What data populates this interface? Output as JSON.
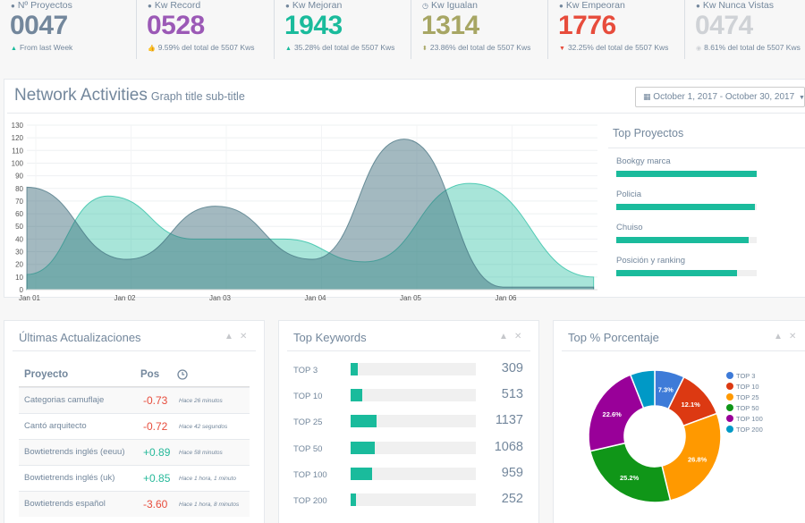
{
  "stats": [
    {
      "label": "Nº Proyectos",
      "icon": "user-icon",
      "value": "0047",
      "color": "#73879c",
      "sub_icon": "caret-up-icon",
      "sub": "From last Week",
      "sub_icon_color": "#1abb9c"
    },
    {
      "label": "Kw Record",
      "icon": "user-icon",
      "value": "0528",
      "color": "#9b59b6",
      "sub_icon": "thumbs-up-icon",
      "sub": "9.59% del total de 5507 Kws",
      "sub_icon_color": "#9b59b6"
    },
    {
      "label": "Kw Mejoran",
      "icon": "user-icon",
      "value": "1943",
      "color": "#1abb9c",
      "sub_icon": "caret-up-icon",
      "sub": "35.28% del total de 5507 Kws",
      "sub_icon_color": "#1abb9c"
    },
    {
      "label": "Kw Igualan",
      "icon": "clock-icon",
      "value": "1314",
      "color": "#a7a664",
      "sub_icon": "sort-icon",
      "sub": "23.86% del total de 5507 Kws",
      "sub_icon_color": "#a7a664"
    },
    {
      "label": "Kw Empeoran",
      "icon": "user-icon",
      "value": "1776",
      "color": "#e74c3c",
      "sub_icon": "caret-down-icon",
      "sub": "32.25% del total de 5507 Kws",
      "sub_icon_color": "#e74c3c"
    },
    {
      "label": "Kw Nunca Vistas",
      "icon": "user-icon",
      "value": "0474",
      "color": "#cfd2d6",
      "sub_icon": "eye-icon",
      "sub": "8.61% del total de 5507 Kws",
      "sub_icon_color": "#cfd2d6"
    }
  ],
  "network": {
    "title": "Network Activities",
    "subtitle": "Graph title sub-title",
    "daterange": "October 1, 2017 - October 30, 2017"
  },
  "chart_data": {
    "type": "area",
    "x": [
      "Jan 01",
      "Jan 02",
      "Jan 03",
      "Jan 04",
      "Jan 05",
      "Jan 06"
    ],
    "ylim": [
      0,
      130
    ],
    "yticks": [
      0,
      10,
      20,
      30,
      40,
      50,
      60,
      70,
      80,
      90,
      100,
      110,
      120,
      130
    ],
    "grid": true,
    "series": [
      {
        "color": "#1abb9c",
        "opacity": 0.38,
        "points": [
          [
            0,
            12
          ],
          [
            0.85,
            74
          ],
          [
            1.75,
            40
          ],
          [
            2.7,
            40
          ],
          [
            3.55,
            22
          ],
          [
            4.65,
            84
          ],
          [
            5.95,
            10
          ]
        ]
      },
      {
        "color": "#3e6d7c",
        "opacity": 0.48,
        "points": [
          [
            0,
            81
          ],
          [
            1.05,
            24
          ],
          [
            1.98,
            66
          ],
          [
            3.0,
            24
          ],
          [
            3.96,
            119
          ],
          [
            5.0,
            2
          ],
          [
            5.95,
            2
          ]
        ]
      }
    ]
  },
  "top_proyectos": {
    "title": "Top Proyectos",
    "items": [
      {
        "name": "Bookgy marca",
        "pct": 100
      },
      {
        "name": "Policia",
        "pct": 99
      },
      {
        "name": "Chuiso",
        "pct": 94
      },
      {
        "name": "Posición y ranking",
        "pct": 86
      }
    ]
  },
  "ultimas": {
    "title": "Últimas Actualizaciones",
    "col_proyecto": "Proyecto",
    "col_pos": "Pos",
    "col_time_icon": "clock-icon",
    "rows": [
      {
        "proyecto": "Categorias camuflaje",
        "pos": "-0.73",
        "time": "Hace 26 minutos",
        "trend": "neg"
      },
      {
        "proyecto": "Cantó arquitecto",
        "pos": "-0.72",
        "time": "Hace 42 segundos",
        "trend": "neg"
      },
      {
        "proyecto": "Bowtietrends inglés (eeuu)",
        "pos": "+0.89",
        "time": "Hace 58 minutos",
        "trend": "pos"
      },
      {
        "proyecto": "Bowtietrends inglés (uk)",
        "pos": "+0.85",
        "time": "Hace 1 hora, 1 minuto",
        "trend": "pos"
      },
      {
        "proyecto": "Bowtietrends español",
        "pos": "-3.60",
        "time": "Hace 1 hora, 8 minutos",
        "trend": "neg"
      }
    ]
  },
  "keywords": {
    "title": "Top Keywords",
    "max": 5507,
    "items": [
      {
        "label": "TOP 3",
        "value": "309"
      },
      {
        "label": "TOP 10",
        "value": "513"
      },
      {
        "label": "TOP 25",
        "value": "1137"
      },
      {
        "label": "TOP 50",
        "value": "1068"
      },
      {
        "label": "TOP 100",
        "value": "959"
      },
      {
        "label": "TOP 200",
        "value": "252"
      }
    ]
  },
  "porcentaje": {
    "title": "Top % Porcentaje",
    "slices": [
      {
        "label": "TOP 3",
        "value": 7.3,
        "text": "7.3%",
        "color": "#3e7bd8"
      },
      {
        "label": "TOP 10",
        "value": 12.1,
        "text": "12.1%",
        "color": "#dc3912"
      },
      {
        "label": "TOP 25",
        "value": 26.8,
        "text": "26.8%",
        "color": "#ff9900"
      },
      {
        "label": "TOP 50",
        "value": 25.2,
        "text": "25.2%",
        "color": "#109618"
      },
      {
        "label": "TOP 100",
        "value": 22.6,
        "text": "22.6%",
        "color": "#990099"
      },
      {
        "label": "TOP 200",
        "value": 6.0,
        "text": "",
        "color": "#0099c6"
      }
    ]
  },
  "controls": {
    "collapse": "▲",
    "close": "✕"
  }
}
